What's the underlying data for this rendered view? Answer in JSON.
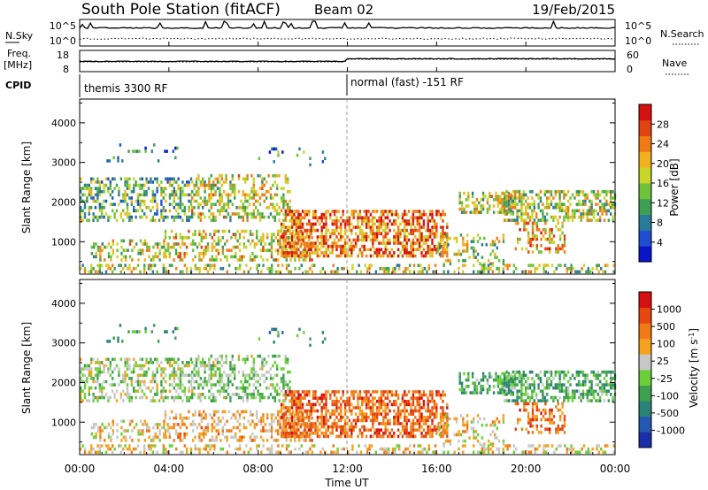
{
  "header": {
    "station": "South Pole Station (fitACF)",
    "beam": "Beam 02",
    "date": "19/Feb/2015"
  },
  "left_labels": {
    "nsky": "N.Sky",
    "freq_line1": "Freq.",
    "freq_line2": "[MHz]",
    "cpid": "CPID"
  },
  "right_labels": {
    "nsearch": "N.Search",
    "nave": "Nave"
  },
  "noise_axis": {
    "left_ticks": [
      "10^5",
      "10^0"
    ],
    "right_ticks": [
      "10^5",
      "10^0"
    ]
  },
  "freq_axis": {
    "left_ticks": [
      "18",
      "8"
    ],
    "right_ticks": [
      "60",
      "0"
    ]
  },
  "cpid_modes": [
    {
      "label": "themis 3300 RF",
      "start_hour": 0,
      "end_hour": 12
    },
    {
      "label": "normal (fast) -151 RF",
      "start_hour": 12,
      "end_hour": 24
    }
  ],
  "chart_data": [
    {
      "type": "heatmap",
      "name": "power",
      "ylabel": "Slant Range [km]",
      "xlabel": "Time UT",
      "x_ticks": [
        "00:00",
        "04:00",
        "08:00",
        "12:00",
        "16:00",
        "20:00",
        "00:00"
      ],
      "xlim_hours": [
        0,
        24
      ],
      "y_ticks": [
        1000,
        2000,
        3000,
        4000
      ],
      "ylim_km": [
        180,
        4600
      ],
      "colorbar": {
        "label": "Power [dB]",
        "ticks": [
          "4",
          "8",
          "12",
          "16",
          "20",
          "24",
          "28"
        ],
        "colors": [
          "#0a14c8",
          "#1f4fd0",
          "#2b7a9a",
          "#3f9e54",
          "#6fc23a",
          "#c8d62a",
          "#f2b21f",
          "#f07a16",
          "#e04412",
          "#d41010"
        ],
        "range": [
          0,
          32
        ]
      }
    },
    {
      "type": "heatmap",
      "name": "velocity",
      "ylabel": "Slant Range [km]",
      "xlabel": "Time UT",
      "x_ticks": [
        "00:00",
        "04:00",
        "08:00",
        "12:00",
        "16:00",
        "20:00",
        "00:00"
      ],
      "xlim_hours": [
        0,
        24
      ],
      "y_ticks": [
        1000,
        2000,
        3000,
        4000
      ],
      "ylim_km": [
        180,
        4600
      ],
      "colorbar": {
        "label": "Velocity [m s^-1]",
        "ticks": [
          "1000",
          "500",
          "100",
          "25",
          "-25",
          "-100",
          "-500",
          "-1000"
        ],
        "colors": [
          "#1a2ea8",
          "#2558b0",
          "#2a8276",
          "#3fa050",
          "#6ccf3a",
          "#c8c8c8",
          "#f5a21e",
          "#f07a16",
          "#e54612",
          "#d41010"
        ]
      }
    }
  ],
  "colors": {
    "scatter_grey": "#c8c8c8",
    "axis": "#000000"
  }
}
